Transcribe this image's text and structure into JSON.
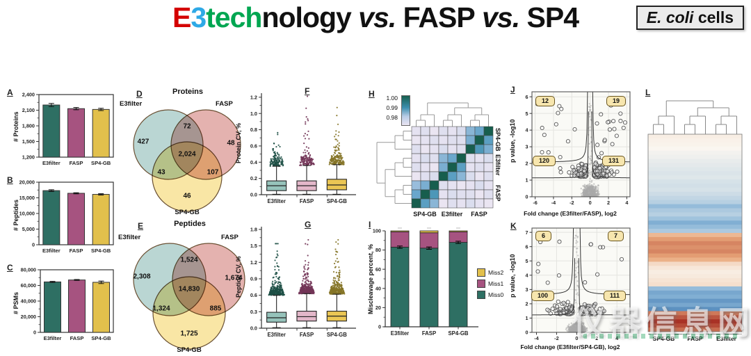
{
  "header": {
    "e3": "E",
    "three": "3",
    "tech": "tech",
    "nology": "nology",
    "vs1": " vs. ",
    "fasp": "FASP",
    "vs2": " vs. ",
    "sp4": "SP4",
    "badge_italic": "E. coli",
    "badge_rest": " cells",
    "colors": {
      "e": "#d40000",
      "three": "#2ea9e6",
      "tech": "#00a651",
      "black": "#000000"
    }
  },
  "watermark": {
    "text": "仪器信息网"
  },
  "methods": [
    "E3filter",
    "FASP",
    "SP4-GB"
  ],
  "method_colors": [
    "#2e6f63",
    "#a65380",
    "#e2c04c"
  ],
  "method_colors_dark": [
    "#1d4f45",
    "#723457",
    "#857427"
  ],
  "method_colors_light": [
    "#96c3bb",
    "#e3b7c9",
    "#ebc654"
  ],
  "venn_colors": {
    "e3": "#9fc6c2",
    "fasp": "#d99490",
    "sp4": "#f6dc82"
  },
  "chart_data": [
    {
      "panel": "A",
      "type": "bar",
      "ylabel": "# Proteins",
      "categories": [
        "E3filter",
        "FASP",
        "SP4-GB"
      ],
      "values": [
        2200,
        2130,
        2115
      ],
      "errors": [
        30,
        22,
        22
      ],
      "ylim": [
        1200,
        2400
      ],
      "yticks": [
        [
          1200,
          "1,200"
        ],
        [
          1500,
          "1,500"
        ],
        [
          1800,
          "1,800"
        ],
        [
          2100,
          "2,100"
        ],
        [
          2400,
          "2,400"
        ]
      ],
      "yminor": [
        1350,
        1650,
        1950,
        2250
      ]
    },
    {
      "panel": "B",
      "type": "bar",
      "ylabel": "# Peptides",
      "categories": [
        "E3filter",
        "FASP",
        "SP4-GB"
      ],
      "values": [
        17300,
        16450,
        16100
      ],
      "errors": [
        280,
        180,
        220
      ],
      "ylim": [
        0,
        20000
      ],
      "yticks": [
        [
          0,
          "0"
        ],
        [
          5000,
          "5,000"
        ],
        [
          10000,
          "10,000"
        ],
        [
          15000,
          "15,000"
        ],
        [
          20000,
          "20,000"
        ]
      ],
      "yminor": [
        2500,
        7500,
        12500,
        17500
      ]
    },
    {
      "panel": "C",
      "type": "bar",
      "ylabel": "# PSMs",
      "categories": [
        "E3filter",
        "FASP",
        "SP4-GB"
      ],
      "values": [
        64500,
        67000,
        64000
      ],
      "errors": [
        700,
        600,
        1600
      ],
      "ylim": [
        0,
        80000
      ],
      "yticks": [
        [
          0,
          "0"
        ],
        [
          20000,
          "20,000"
        ],
        [
          40000,
          "40,000"
        ],
        [
          60000,
          "60,000"
        ],
        [
          80000,
          "80,000"
        ]
      ],
      "yminor": [
        10000,
        30000,
        50000,
        70000
      ]
    },
    {
      "panel": "D",
      "type": "venn",
      "title": "Proteins",
      "labels": {
        "e3": "E3filter",
        "fasp": "FASP",
        "sp4": "SP4-GB"
      },
      "regions": {
        "e3_only": "427",
        "fasp_only": "48",
        "sp4_only": "46",
        "e3_fasp": "72",
        "e3_sp4": "43",
        "fasp_sp4": "107",
        "all": "2,024"
      }
    },
    {
      "panel": "E",
      "type": "venn",
      "title": "Peptides",
      "labels": {
        "e3": "E3filter",
        "fasp": "FASP",
        "sp4": "SP4-GB"
      },
      "regions": {
        "e3_only": "2,308",
        "fasp_only": "1,674",
        "sp4_only": "1,725",
        "e3_fasp": "1,524",
        "e3_sp4": "1,324",
        "fasp_sp4": "885",
        "all": "14,830"
      }
    },
    {
      "panel": "F",
      "type": "box",
      "ylabel": "Protein CV, %",
      "categories": [
        "E3filter",
        "FASP",
        "SP4-GB"
      ],
      "ylim": [
        0,
        1.25
      ],
      "yticks": [
        [
          0,
          "0.0"
        ],
        [
          0.2,
          "0.2"
        ],
        [
          0.4,
          "0.4"
        ],
        [
          0.6,
          "0.6"
        ],
        [
          0.8,
          "0.8"
        ],
        [
          1.0,
          "1.0"
        ],
        [
          1.2,
          "1.2"
        ]
      ],
      "yminor": [
        0.1,
        0.3,
        0.5,
        0.7,
        0.9,
        1.1
      ],
      "groups": [
        {
          "q1": 0.05,
          "med": 0.11,
          "q3": 0.17,
          "lo": 0.005,
          "hi": 0.35,
          "out_max": 1.05,
          "n_out": 130
        },
        {
          "q1": 0.05,
          "med": 0.11,
          "q3": 0.17,
          "lo": 0.005,
          "hi": 0.36,
          "out_max": 1.22,
          "n_out": 135
        },
        {
          "q1": 0.06,
          "med": 0.12,
          "q3": 0.19,
          "lo": 0.005,
          "hi": 0.37,
          "out_max": 1.08,
          "n_out": 180
        }
      ]
    },
    {
      "panel": "G",
      "type": "box",
      "ylabel": "Peptide CV, %",
      "categories": [
        "E3filter",
        "FASP",
        "SP4-GB"
      ],
      "ylim": [
        0,
        1.85
      ],
      "yticks": [
        [
          0,
          "0.0"
        ],
        [
          0.3,
          "0.3"
        ],
        [
          0.6,
          "0.6"
        ],
        [
          0.9,
          "0.9"
        ],
        [
          1.2,
          "1.2"
        ],
        [
          1.5,
          "1.5"
        ],
        [
          1.8,
          "1.8"
        ]
      ],
      "yminor": [
        0.15,
        0.45,
        0.75,
        1.05,
        1.35,
        1.65
      ],
      "groups": [
        {
          "q1": 0.11,
          "med": 0.19,
          "q3": 0.29,
          "lo": 0.01,
          "hi": 0.6,
          "out_max": 1.55,
          "n_out": 280
        },
        {
          "q1": 0.13,
          "med": 0.21,
          "q3": 0.31,
          "lo": 0.01,
          "hi": 0.63,
          "out_max": 1.62,
          "n_out": 330
        },
        {
          "q1": 0.13,
          "med": 0.22,
          "q3": 0.31,
          "lo": 0.01,
          "hi": 0.62,
          "out_max": 1.62,
          "n_out": 300
        }
      ]
    },
    {
      "panel": "H",
      "type": "heatmap",
      "legend_ticks": [
        "1.00",
        "0.99",
        "0.98"
      ],
      "col_labels": [
        "SP4-GB",
        "E3filter",
        "FASP"
      ],
      "row_labels": [
        "SP4-GB",
        "E3filter",
        "FASP"
      ],
      "matrix": [
        [
          0.981,
          0.982,
          0.98,
          0.982,
          0.981,
          0.983,
          0.992,
          0.994,
          1.0
        ],
        [
          0.98,
          0.981,
          0.982,
          0.981,
          0.982,
          0.982,
          0.993,
          1.0,
          0.995
        ],
        [
          0.982,
          0.98,
          0.981,
          0.983,
          0.981,
          0.982,
          1.0,
          0.996,
          0.993
        ],
        [
          0.981,
          0.983,
          0.982,
          0.992,
          0.994,
          1.0,
          0.982,
          0.981,
          0.983
        ],
        [
          0.982,
          0.981,
          0.98,
          0.993,
          1.0,
          0.995,
          0.981,
          0.982,
          0.981
        ],
        [
          0.98,
          0.982,
          0.983,
          1.0,
          0.995,
          0.992,
          0.983,
          0.98,
          0.982
        ],
        [
          0.991,
          0.993,
          1.0,
          0.982,
          0.981,
          0.98,
          0.981,
          0.983,
          0.981
        ],
        [
          0.994,
          1.0,
          0.996,
          0.981,
          0.983,
          0.982,
          0.982,
          0.98,
          0.982
        ],
        [
          1.0,
          0.995,
          0.992,
          0.98,
          0.982,
          0.981,
          0.983,
          0.981,
          0.98
        ]
      ]
    },
    {
      "panel": "I",
      "type": "stacked-bar",
      "ylabel": "Miscleavage percent, %",
      "categories": [
        "E3filter",
        "FASP",
        "SP4-GB"
      ],
      "ylim": [
        0,
        100
      ],
      "yticks": [
        [
          0,
          "0"
        ],
        [
          20,
          "20"
        ],
        [
          40,
          "40"
        ],
        [
          60,
          "60"
        ],
        [
          80,
          "80"
        ],
        [
          100,
          "100"
        ]
      ],
      "yminor": [
        10,
        30,
        50,
        70,
        90
      ],
      "series": [
        {
          "name": "Miss0",
          "color": "#2e6f63",
          "values": [
            83,
            82,
            88
          ]
        },
        {
          "name": "Miss1",
          "color": "#a65380",
          "values": [
            16,
            16,
            11
          ]
        },
        {
          "name": "Miss2",
          "color": "#e2c04c",
          "values": [
            1,
            2,
            1
          ]
        }
      ]
    },
    {
      "panel": "J",
      "type": "volcano",
      "xlabel": "Fold change (E3filter/FASP), log2",
      "ylabel": "p value, -log10",
      "xlim": [
        -6.35,
        4.35
      ],
      "ylim": [
        0,
        6.3
      ],
      "xticks": [
        [
          -6,
          "-6"
        ],
        [
          -4,
          "-4"
        ],
        [
          -2,
          "-2"
        ],
        [
          0,
          "0"
        ],
        [
          2,
          "2"
        ],
        [
          4,
          "4"
        ]
      ],
      "yticks": [
        [
          0,
          "0"
        ],
        [
          1,
          "1"
        ],
        [
          2,
          "2"
        ],
        [
          3,
          "3"
        ],
        [
          4,
          "4"
        ],
        [
          5,
          "5"
        ],
        [
          6,
          "6"
        ]
      ],
      "counts": {
        "up_left": "12",
        "up_right": "19",
        "mid_left": "120",
        "mid_right": "131"
      },
      "thresholds": {
        "x0": 0.25,
        "upper_y": 2.05,
        "ku": 0.19,
        "lower_y": 1.12,
        "kl": 0.08
      }
    },
    {
      "panel": "K",
      "type": "volcano",
      "xlabel": "Fold change (E3filter/SP4-GB), log2",
      "ylabel": "p value, -log10",
      "xlim": [
        -4.45,
        5.3
      ],
      "ylim": [
        0,
        7.3
      ],
      "xticks": [
        [
          -4,
          "-4"
        ],
        [
          -2,
          "-2"
        ],
        [
          0,
          "0"
        ],
        [
          2,
          "2"
        ],
        [
          4,
          "4"
        ]
      ],
      "yticks": [
        [
          0,
          "0"
        ],
        [
          1,
          "1"
        ],
        [
          2,
          "2"
        ],
        [
          3,
          "3"
        ],
        [
          4,
          "4"
        ],
        [
          5,
          "5"
        ],
        [
          6,
          "6"
        ],
        [
          7,
          "7"
        ]
      ],
      "counts": {
        "up_left": "6",
        "up_right": "7",
        "mid_left": "100",
        "mid_right": "111"
      },
      "thresholds": {
        "x0": 0.3,
        "upper_y": 2.6,
        "ku": 0.22,
        "lower_y": 1.2,
        "kl": 0.08
      }
    },
    {
      "panel": "L",
      "type": "heatmap-expression",
      "col_groups": [
        "SP4-GB",
        "FASP",
        "E3filter"
      ],
      "rows": [
        0.05,
        0.03,
        0.02,
        0,
        -0.03,
        -0.05,
        -0.08,
        -0.1,
        -0.12,
        -0.14,
        -0.12,
        -0.16,
        -0.18,
        -0.16,
        -0.2,
        -0.25,
        -0.3,
        -0.45,
        -0.35,
        -0.3,
        -0.4,
        -0.55,
        -0.45,
        -0.35,
        0.4,
        0.55,
        0.65,
        0.6,
        0.65,
        0.55,
        0.45,
        0.18,
        0.1,
        0.06,
        0.08,
        0.12,
        0.15,
        -0.45,
        -0.6,
        -0.55,
        -0.7,
        -0.6,
        -0.75,
        0.7,
        0.85,
        1,
        0.9,
        0.75
      ]
    }
  ]
}
